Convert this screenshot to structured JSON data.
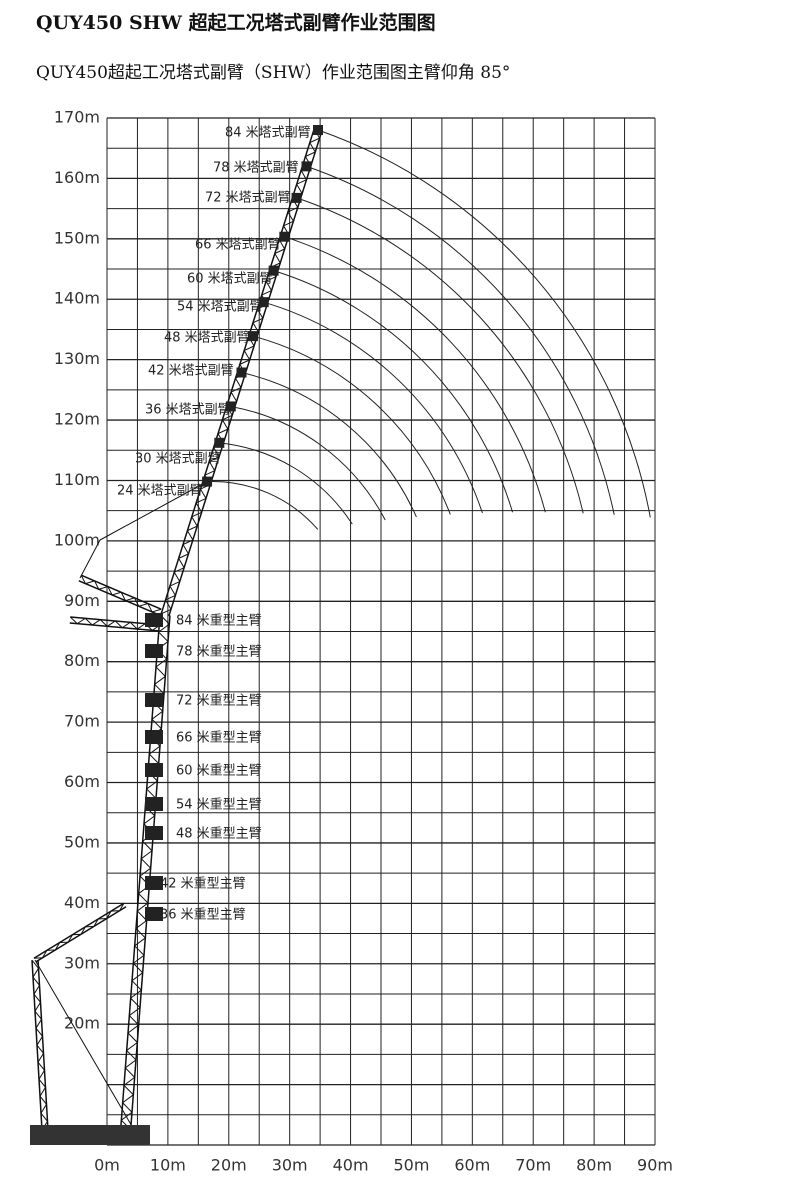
{
  "title": "QUY450 SHW 超起工况塔式副臂作业范围图",
  "subtitle": "QUY450超起工况塔式副臂（SHW）作业范围图主臂仰角 85°",
  "y_axis": {
    "ticks": [
      "170m",
      "160m",
      "150m",
      "140m",
      "130m",
      "120m",
      "110m",
      "100m",
      "90m",
      "80m",
      "70m",
      "60m",
      "50m",
      "40m",
      "30m",
      "20m"
    ]
  },
  "x_axis": {
    "ticks": [
      "0m",
      "10m",
      "20m",
      "30m",
      "40m",
      "50m",
      "60m",
      "70m",
      "80m",
      "90m"
    ]
  },
  "jib_labels": [
    "84 米塔式副臂",
    "78 米塔式副臂",
    "72 米塔式副臂",
    "66 米塔式副臂",
    "60 米塔式副臂",
    "54 米塔式副臂",
    "48 米塔式副臂",
    "42 米塔式副臂",
    "36 米塔式副臂",
    "30 米塔式副臂",
    "24 米塔式副臂"
  ],
  "boom_labels": [
    "84 米重型主臂",
    "78 米重型主臂",
    "72 米重型主臂",
    "66 米重型主臂",
    "60 米重型主臂",
    "54 米重型主臂",
    "48 米重型主臂",
    "42 米重型主臂",
    "36 米重型主臂"
  ]
}
